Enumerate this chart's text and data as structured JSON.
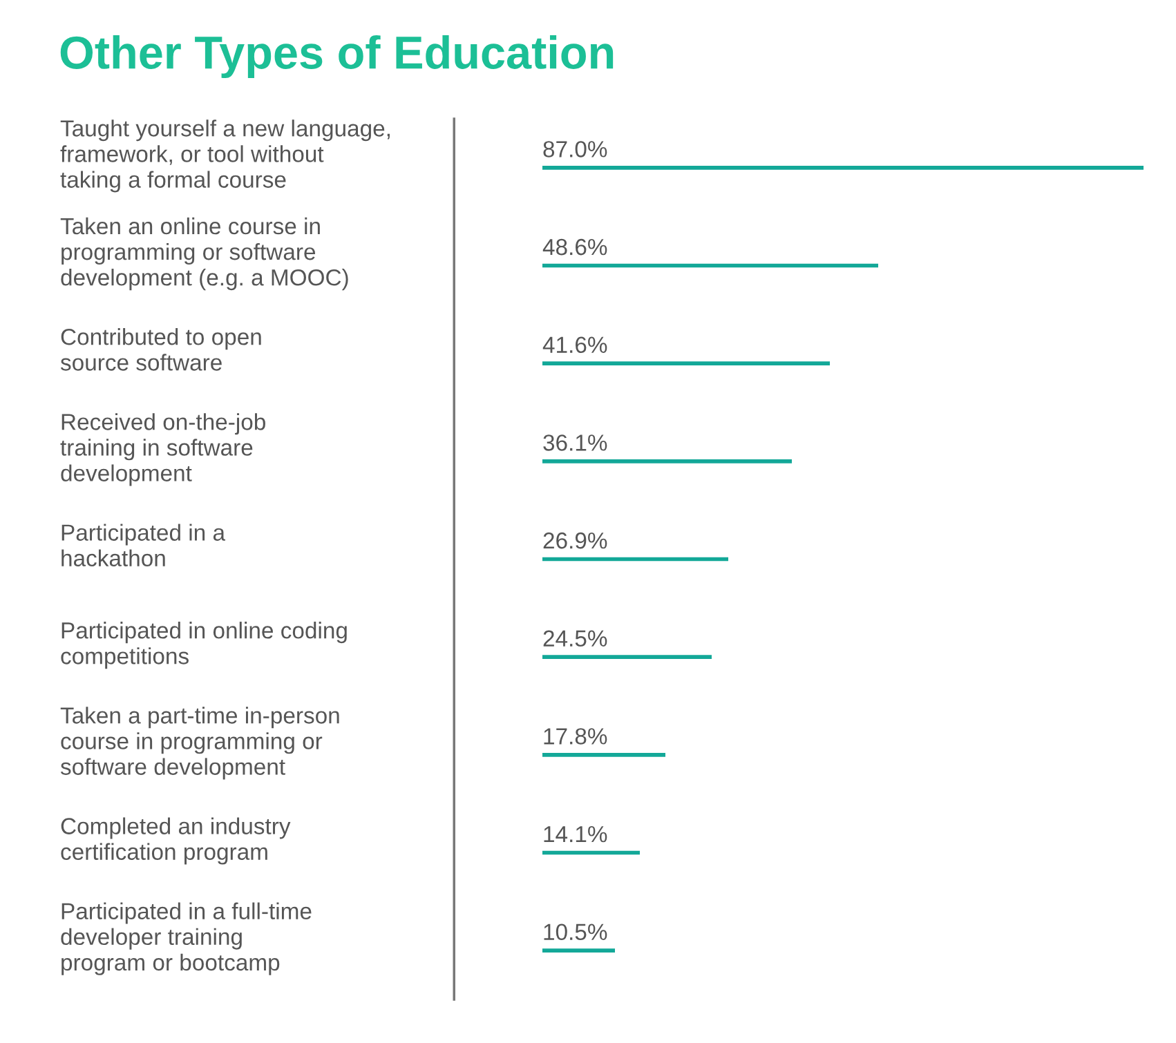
{
  "chart_data": {
    "type": "bar",
    "orientation": "horizontal",
    "title": "Other Types of Education",
    "categories": [
      "Taught yourself a new language,\nframework, or tool without\ntaking a formal course",
      "Taken an online course in\nprogramming or software\ndevelopment (e.g. a MOOC)",
      "Contributed to open\nsource software",
      "Received on-the-job\ntraining in software\ndevelopment",
      "Participated in a\nhackathon",
      "Participated in online coding\ncompetitions",
      "Taken a part-time in-person\ncourse in programming or\nsoftware development",
      "Completed an industry\ncertification program",
      "Participated in a full-time\ndeveloper training\nprogram or bootcamp"
    ],
    "values": [
      87.0,
      48.6,
      41.6,
      36.1,
      26.9,
      24.5,
      17.8,
      14.1,
      10.5
    ],
    "value_labels": [
      "87.0%",
      "48.6%",
      "41.6%",
      "36.1%",
      "26.9%",
      "24.5%",
      "17.8%",
      "14.1%",
      "10.5%"
    ],
    "color": "#13a898"
  }
}
